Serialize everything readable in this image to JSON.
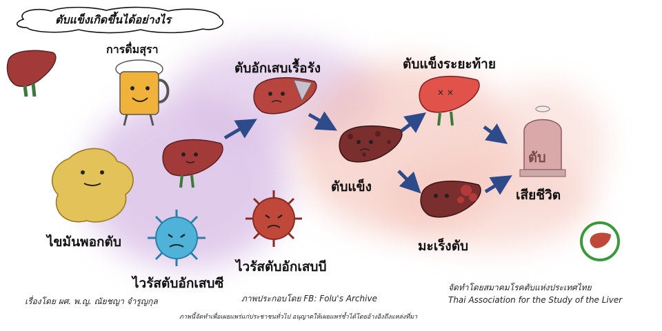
{
  "title": "ตับแข็งเกิดขึ้นได้อย่างไร",
  "stages": {
    "alcohol": "การดื่มสุรา",
    "fatty_liver": "ไขมันพอกตับ",
    "hep_c": "ไวรัสตับอักเสบซี",
    "hep_b": "ไวรัสตับอักเสบบี",
    "chronic_hepatitis": "ตับอักเสบเรื้อรัง",
    "cirrhosis": "ตับแข็ง",
    "end_stage": "ตับแข็งระยะท้าย",
    "liver_cancer": "มะเร็งตับ",
    "death": "เสียชีวิต"
  },
  "tombstone_text": "ตับ",
  "credits": {
    "author": "เรื่องโดย ผศ. พ.ญ. ณัยชญา จำรูญกุล",
    "illustrator": "ภาพประกอบโดย FB: Folu's Archive",
    "organizer_th": "จัดทำโดยสมาคมโรคตับแห่งประเทศไทย",
    "organizer_en": "Thai Association for the Study of the Liver",
    "disclaimer": "ภาพนี้จัดทำเพื่อเผยแพร่แก่ประชาชนทั่วไป อนุญาตให้เผยแพร่ซ้ำได้โดยอ้างอิงถึงแหล่งที่มา"
  },
  "colors": {
    "liver": "#a33a3a",
    "liver_dark": "#7a2e2e",
    "fat": "#e3c25a",
    "virus_c": "#4fb3d9",
    "virus_b": "#c0483b",
    "arrow": "#2d4a8a",
    "purple_haze": "#c9a6d8",
    "pink_haze": "#efb0a8",
    "logo_green": "#3a9a3a"
  }
}
